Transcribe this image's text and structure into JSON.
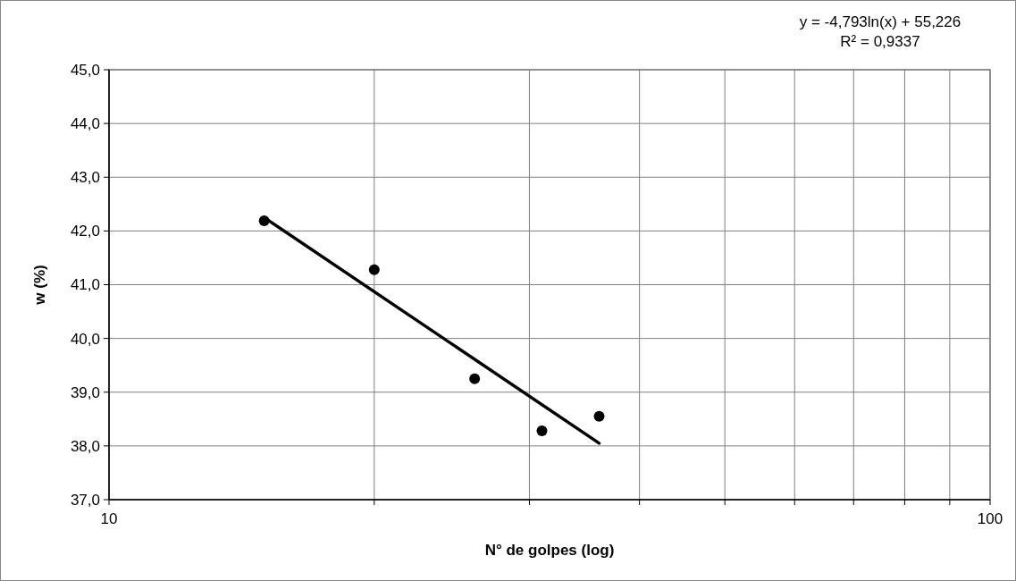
{
  "chart_data": {
    "type": "scatter",
    "xlabel": "N° de golpes (log)",
    "ylabel": "w (%)",
    "log": "x",
    "grid": true,
    "marker": "circle",
    "xlim": [
      10,
      100
    ],
    "xticks": [
      10,
      {
        "value": 20,
        "label": null
      },
      {
        "value": 30,
        "label": null
      },
      {
        "value": 40,
        "label": null
      },
      {
        "value": 50,
        "label": null
      },
      {
        "value": 60,
        "label": null
      },
      {
        "value": 70,
        "label": null
      },
      {
        "value": 80,
        "label": null
      },
      {
        "value": 90,
        "label": null
      },
      100
    ],
    "ylim": [
      37,
      45
    ],
    "yticks": [
      {
        "value": 37,
        "label": "37,0"
      },
      {
        "value": 38,
        "label": "38,0"
      },
      {
        "value": 39,
        "label": "39,0"
      },
      {
        "value": 40,
        "label": "40,0"
      },
      {
        "value": 41,
        "label": "41,0"
      },
      {
        "value": 42,
        "label": "42,0"
      },
      {
        "value": 43,
        "label": "43,0"
      },
      {
        "value": 44,
        "label": "44,0"
      },
      {
        "value": 45,
        "label": "45,0"
      }
    ],
    "annotations": [
      "y = -4,793ln(x) + 55,226",
      "R² = 0,9337"
    ],
    "series": [
      {
        "color": "#000000",
        "x": [
          15,
          20,
          26,
          31,
          36
        ],
        "values": [
          42.19,
          41.28,
          39.25,
          38.28,
          38.55
        ]
      },
      {
        "type": "line",
        "marker": "none",
        "color": "#000000",
        "x": [
          15,
          36
        ],
        "values": [
          42.25,
          38.05
        ]
      }
    ]
  }
}
